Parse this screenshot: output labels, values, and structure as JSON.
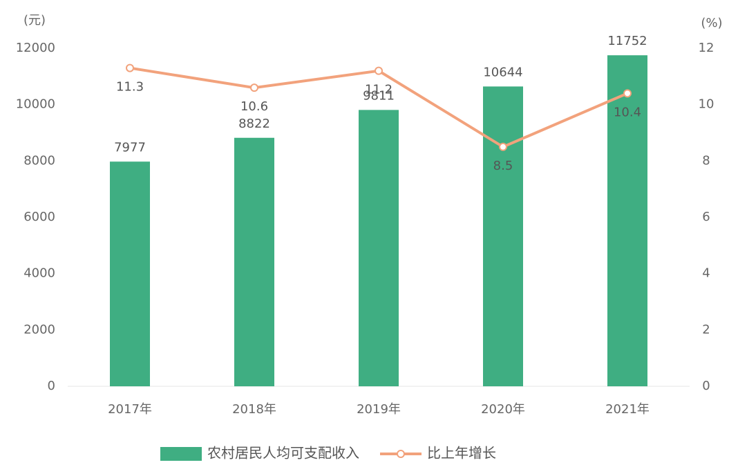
{
  "chart_data": {
    "type": "bar",
    "categories": [
      "2017年",
      "2018年",
      "2019年",
      "2020年",
      "2021年"
    ],
    "series": [
      {
        "name": "农村居民人均可支配收入",
        "type": "bar",
        "color": "#3fae82",
        "values": [
          7977,
          8822,
          9811,
          10644,
          11752
        ]
      },
      {
        "name": "比上年增长",
        "type": "line",
        "axis": "y2",
        "color": "#f2a27c",
        "values": [
          11.3,
          10.6,
          11.2,
          8.5,
          10.4
        ]
      }
    ],
    "y_label": "(元)",
    "y2_label": "(%)",
    "ylim": [
      0,
      12000
    ],
    "yticks": [
      0,
      2000,
      4000,
      6000,
      8000,
      10000,
      12000
    ],
    "y2lim": [
      0,
      12
    ],
    "y2ticks": [
      0,
      2,
      4,
      6,
      8,
      10,
      12
    ],
    "legend": "bottom"
  }
}
